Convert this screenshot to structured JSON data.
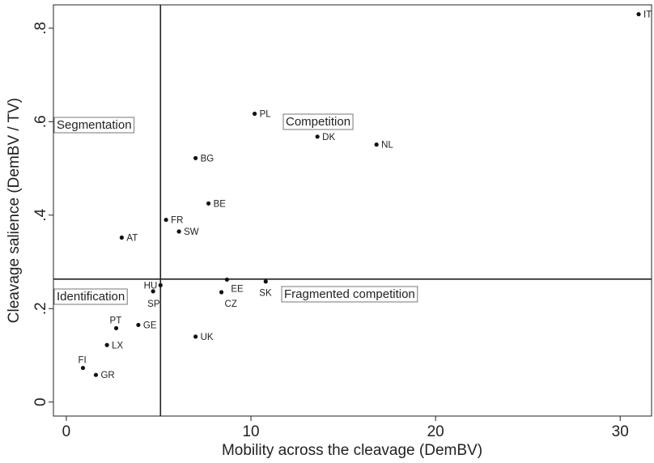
{
  "chart_data": {
    "type": "scatter",
    "xlabel": "Mobility across the cleavage (DemBV)",
    "ylabel": "Cleavage salience (DemBV / TV)",
    "xlim": [
      -0.7,
      31.7
    ],
    "ylim": [
      -0.03,
      0.85
    ],
    "xticks": [
      {
        "value": 0,
        "label": "0"
      },
      {
        "value": 10,
        "label": "10"
      },
      {
        "value": 20,
        "label": "20"
      },
      {
        "value": 30,
        "label": "30"
      }
    ],
    "yticks": [
      {
        "value": 0,
        "label": "0"
      },
      {
        "value": 0.2,
        "label": ".2"
      },
      {
        "value": 0.4,
        "label": ".4"
      },
      {
        "value": 0.6,
        "label": ".6"
      },
      {
        "value": 0.8,
        "label": ".8"
      }
    ],
    "grid": false,
    "reference_lines": {
      "x": 5.1,
      "y": 0.263
    },
    "points": [
      {
        "label": "IT",
        "x": 31.0,
        "y": 0.83
      },
      {
        "label": "PL",
        "x": 10.2,
        "y": 0.617
      },
      {
        "label": "DK",
        "x": 13.6,
        "y": 0.568
      },
      {
        "label": "NL",
        "x": 16.8,
        "y": 0.551
      },
      {
        "label": "BG",
        "x": 7.0,
        "y": 0.522
      },
      {
        "label": "BE",
        "x": 7.7,
        "y": 0.425
      },
      {
        "label": "FR",
        "x": 5.4,
        "y": 0.39
      },
      {
        "label": "SW",
        "x": 6.1,
        "y": 0.365
      },
      {
        "label": "AT",
        "x": 3.0,
        "y": 0.352
      },
      {
        "label": "EE",
        "x": 8.7,
        "y": 0.262
      },
      {
        "label": "SK",
        "x": 10.8,
        "y": 0.258
      },
      {
        "label": "HU",
        "x": 5.1,
        "y": 0.25
      },
      {
        "label": "SP",
        "x": 4.7,
        "y": 0.237
      },
      {
        "label": "CZ",
        "x": 8.4,
        "y": 0.235
      },
      {
        "label": "PT",
        "x": 2.7,
        "y": 0.158
      },
      {
        "label": "GE",
        "x": 3.9,
        "y": 0.165
      },
      {
        "label": "UK",
        "x": 7.0,
        "y": 0.14
      },
      {
        "label": "LX",
        "x": 2.2,
        "y": 0.122
      },
      {
        "label": "FI",
        "x": 0.9,
        "y": 0.073
      },
      {
        "label": "GR",
        "x": 1.6,
        "y": 0.058
      }
    ],
    "quadrant_labels": [
      {
        "key": "segmentation",
        "text": "Segmentation"
      },
      {
        "key": "competition",
        "text": "Competition"
      },
      {
        "key": "identification",
        "text": "Identification"
      },
      {
        "key": "fragmented",
        "text": "Fragmented competition"
      }
    ]
  }
}
